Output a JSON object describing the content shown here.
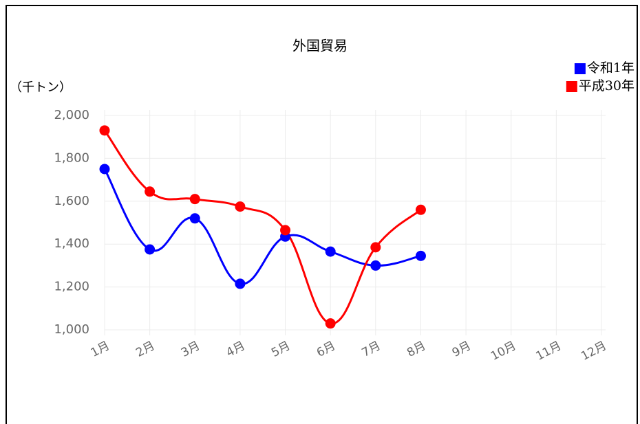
{
  "chart_data": {
    "type": "line",
    "title": "外国貿易",
    "y_label": "（千トン）",
    "categories": [
      "1月",
      "2月",
      "3月",
      "4月",
      "5月",
      "6月",
      "7月",
      "8月",
      "9月",
      "10月",
      "11月",
      "12月"
    ],
    "series": [
      {
        "name": "令和1年",
        "color": "#0000ff",
        "values": [
          1750,
          1375,
          1520,
          1215,
          1435,
          1365,
          1300,
          1345,
          null,
          null,
          null,
          null
        ]
      },
      {
        "name": "平成30年",
        "color": "#ff0000",
        "values": [
          1930,
          1645,
          1610,
          1575,
          1465,
          1030,
          1385,
          1560,
          null,
          null,
          null,
          null
        ]
      }
    ],
    "ylim": [
      1000,
      2000
    ],
    "yticks": [
      {
        "value": 1000,
        "label": "1,000"
      },
      {
        "value": 1200,
        "label": "1,200"
      },
      {
        "value": 1400,
        "label": "1,400"
      },
      {
        "value": 1600,
        "label": "1,600"
      },
      {
        "value": 1800,
        "label": "1,800"
      },
      {
        "value": 2000,
        "label": "2,000"
      }
    ],
    "grid": true,
    "legend": "top-right"
  }
}
